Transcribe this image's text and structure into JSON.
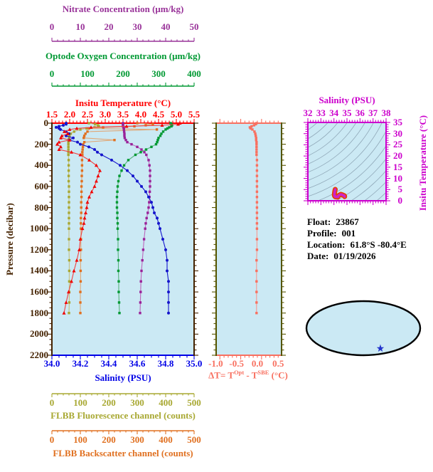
{
  "info": {
    "float_label": "Float:",
    "float_value": "23867",
    "profile_label": "Profile:",
    "profile_value": "001",
    "location_label": "Location:",
    "location_value": "61.8°S -80.4°E",
    "date_label": "Date:",
    "date_value": "01/19/2026"
  },
  "axes": {
    "nitrate": {
      "title": "Nitrate Concentration (μm/kg)",
      "color": "#993399",
      "min": 0,
      "max": 50,
      "ticks": [
        "0",
        "10",
        "20",
        "30",
        "40",
        "50"
      ]
    },
    "oxygen": {
      "title": "Optode Oxygen Concentration (μm/kg)",
      "color": "#009933",
      "min": 0,
      "max": 400,
      "ticks": [
        "0",
        "100",
        "200",
        "300",
        "400"
      ]
    },
    "temperature": {
      "title": "Insitu Temperature (°C)",
      "color": "#FF0000",
      "min": 1.5,
      "max": 5.5,
      "ticks": [
        "1.5",
        "2.0",
        "2.5",
        "3.0",
        "3.5",
        "4.0",
        "4.5",
        "5.0",
        "5.5"
      ]
    },
    "salinity": {
      "title": "Salinity (PSU)",
      "color": "#0000E6",
      "min": 34.0,
      "max": 35.0,
      "ticks": [
        "34.0",
        "34.2",
        "34.4",
        "34.6",
        "34.8",
        "35.0"
      ]
    },
    "fluorescence": {
      "title": "FLBB Fluorescence channel (counts)",
      "color": "#A8A832",
      "min": 0,
      "max": 500,
      "ticks": [
        "0",
        "100",
        "200",
        "300",
        "400",
        "500"
      ]
    },
    "backscatter": {
      "title": "FLBB Backscatter channel (counts)",
      "color": "#E07020",
      "min": 0,
      "max": 500,
      "ticks": [
        "0",
        "100",
        "200",
        "300",
        "400",
        "500"
      ]
    },
    "pressure": {
      "title": "Pressure (decibar)",
      "color": "#442200",
      "min": 0,
      "max": 2200,
      "ticks": [
        "0",
        "200",
        "400",
        "600",
        "800",
        "1000",
        "1200",
        "1400",
        "1600",
        "1800",
        "2000",
        "2200"
      ]
    },
    "delta_t": {
      "t1": "ΔT= T",
      "t2": "Opt",
      "t3": " - T",
      "t4": "SBE",
      "t5": " (°C)",
      "color": "#F87060",
      "min": -0.99,
      "max": 0.58,
      "ticks": [
        "-1.0",
        "-0.5",
        "0.0",
        "0.5"
      ]
    },
    "ts_salinity": {
      "title": "Salinity (PSU)",
      "color": "#CC00CC",
      "min": 32,
      "max": 38,
      "ticks": [
        "32",
        "33",
        "34",
        "35",
        "36",
        "37",
        "38"
      ]
    },
    "ts_temperature": {
      "title": "Insitu Temperature (°C)",
      "color": "#CC00CC",
      "min": 0,
      "max": 35,
      "ticks": [
        "0",
        "5",
        "10",
        "15",
        "20",
        "25",
        "30",
        "35"
      ]
    }
  },
  "chart_data": {
    "type": "line",
    "orientation": "vertical-profile",
    "ylabel": "Pressure (decibar)",
    "ylim": [
      0,
      2200
    ],
    "pressure": [
      0,
      10,
      20,
      30,
      40,
      50,
      60,
      80,
      100,
      120,
      140,
      160,
      180,
      200,
      225,
      250,
      275,
      300,
      350,
      400,
      450,
      500,
      550,
      600,
      650,
      700,
      750,
      800,
      850,
      900,
      950,
      1000,
      1100,
      1200,
      1300,
      1400,
      1500,
      1600,
      1700,
      1800
    ],
    "series": [
      {
        "name": "Insitu Temperature",
        "units": "°C",
        "axis": "temperature",
        "marker": "triangle",
        "color": "#F00000",
        "line": "#F04040",
        "values": [
          5.1,
          5.05,
          4.6,
          3.6,
          2.6,
          2.2,
          2.0,
          1.85,
          1.95,
          1.78,
          1.75,
          2.0,
          1.7,
          1.65,
          1.75,
          1.7,
          2.05,
          2.3,
          2.55,
          2.75,
          2.85,
          2.8,
          2.75,
          2.7,
          2.62,
          2.55,
          2.5,
          2.48,
          2.45,
          2.42,
          2.4,
          2.36,
          2.3,
          2.27,
          2.2,
          2.12,
          2.05,
          1.97,
          1.9,
          1.84
        ]
      },
      {
        "name": "Salinity",
        "units": "PSU",
        "axis": "salinity",
        "marker": "circle",
        "color": "#1515CC",
        "line": "#1515CC",
        "values": [
          34.1,
          34.1,
          34.08,
          34.05,
          34.03,
          34.05,
          34.06,
          34.1,
          34.12,
          34.1,
          34.15,
          34.12,
          34.18,
          34.2,
          34.26,
          34.3,
          34.32,
          34.35,
          34.42,
          34.48,
          34.53,
          34.57,
          34.6,
          34.63,
          34.66,
          34.68,
          34.7,
          34.71,
          34.72,
          34.74,
          34.75,
          34.76,
          34.78,
          34.8,
          34.81,
          34.81,
          34.82,
          34.82,
          34.82,
          34.82
        ]
      },
      {
        "name": "Optode Oxygen Concentration",
        "units": "μm/kg",
        "axis": "oxygen",
        "marker": "square",
        "color": "#009933",
        "line": "#55B37A",
        "values": [
          334,
          337,
          338,
          336,
          330,
          325,
          320,
          313,
          308,
          305,
          300,
          298,
          296,
          293,
          280,
          265,
          250,
          235,
          215,
          203,
          196,
          190,
          187,
          185,
          184,
          183,
          183,
          183,
          184,
          184,
          185,
          185,
          186,
          186,
          187,
          187,
          188,
          188,
          189,
          190
        ]
      },
      {
        "name": "Nitrate Concentration",
        "units": "μm/kg",
        "axis": "nitrate",
        "marker": "square",
        "color": "#992299",
        "line": "#BB66BB",
        "values": [
          25.0,
          25.0,
          25.0,
          25.0,
          25.2,
          25.3,
          25.3,
          25.4,
          25.5,
          25.5,
          25.6,
          26.0,
          26.5,
          28.0,
          30.0,
          31.5,
          32.5,
          33.2,
          34.0,
          34.3,
          34.5,
          34.5,
          34.5,
          34.5,
          34.4,
          34.3,
          34.2,
          34.0,
          33.7,
          33.3,
          33.0,
          32.8,
          32.4,
          32.1,
          31.8,
          31.5,
          31.3,
          31.2,
          31.1,
          31.0
        ]
      },
      {
        "name": "FLBB Fluorescence channel",
        "units": "counts",
        "axis": "fluorescence",
        "marker": "square",
        "color": "#A8A832",
        "line": "#C6C07E",
        "values": [
          130,
          152,
          162,
          165,
          150,
          122,
          100,
          78,
          66,
          62,
          60,
          59,
          58,
          58,
          58,
          58,
          58,
          58,
          59,
          59,
          59,
          59,
          59,
          60,
          60,
          60,
          60,
          60,
          60,
          60,
          60,
          60,
          60,
          60,
          61,
          61,
          61,
          61,
          61,
          60
        ]
      },
      {
        "name": "FLBB Backscatter channel",
        "units": "counts",
        "axis": "backscatter",
        "marker": "square",
        "color": "#E07020",
        "line": "#E0A878",
        "values": [
          300,
          355,
          330,
          290,
          180,
          130,
          369,
          125,
          118,
          114,
          112,
          220,
          114,
          110,
          109,
          108,
          107,
          107,
          106,
          106,
          106,
          105,
          105,
          104,
          104,
          104,
          103,
          103,
          103,
          102,
          102,
          102,
          102,
          102,
          101,
          101,
          101,
          100,
          100,
          100
        ]
      }
    ],
    "delta_series": {
      "name": "ΔT = T Opt - T SBE",
      "units": "°C",
      "axis": "delta_t",
      "marker": "square",
      "color": "#F87060",
      "line": "#F89890",
      "values": [
        -0.02,
        -0.04,
        -0.08,
        -0.14,
        -0.18,
        -0.16,
        -0.12,
        -0.07,
        -0.05,
        -0.04,
        -0.03,
        -0.03,
        -0.02,
        -0.02,
        -0.02,
        -0.02,
        -0.02,
        -0.02,
        -0.01,
        -0.01,
        -0.01,
        -0.01,
        -0.01,
        -0.01,
        -0.01,
        -0.01,
        -0.01,
        -0.01,
        -0.01,
        -0.01,
        -0.01,
        -0.01,
        -0.01,
        -0.01,
        -0.02,
        -0.02,
        -0.02,
        -0.02,
        -0.02,
        -0.02
      ]
    },
    "ts_plot": {
      "xlabel": "Salinity (PSU)",
      "ylabel": "Insitu Temperature (°C)",
      "xlim": [
        32,
        38
      ],
      "ylim": [
        0,
        35
      ],
      "contours": "density isolines",
      "curve": "salinity vs temperature from profile series",
      "curve_color": "#CC22CC",
      "curve_outline": "#E84000"
    }
  },
  "map": {
    "marker": "star",
    "marker_color": "#2233CC",
    "land_color": "#F6C8C8",
    "ocean_color": "#CBE9F4"
  },
  "colors": {
    "plot_bg": "#CBE9F4",
    "frame_brown": "#442200",
    "mid_side_axis": "#555500",
    "contour_gray": "#90A8B8"
  }
}
